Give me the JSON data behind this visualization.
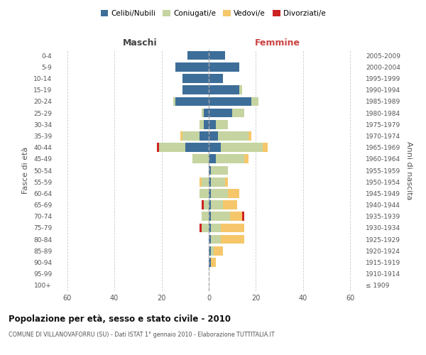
{
  "age_groups": [
    "100+",
    "95-99",
    "90-94",
    "85-89",
    "80-84",
    "75-79",
    "70-74",
    "65-69",
    "60-64",
    "55-59",
    "50-54",
    "45-49",
    "40-44",
    "35-39",
    "30-34",
    "25-29",
    "20-24",
    "15-19",
    "10-14",
    "5-9",
    "0-4"
  ],
  "birth_years": [
    "≤ 1909",
    "1910-1914",
    "1915-1919",
    "1920-1924",
    "1925-1929",
    "1930-1934",
    "1935-1939",
    "1940-1944",
    "1945-1949",
    "1950-1954",
    "1955-1959",
    "1960-1964",
    "1965-1969",
    "1970-1974",
    "1975-1979",
    "1980-1984",
    "1985-1989",
    "1990-1994",
    "1995-1999",
    "2000-2004",
    "2005-2009"
  ],
  "maschi": {
    "celibi": [
      0,
      0,
      0,
      0,
      0,
      0,
      0,
      0,
      0,
      0,
      0,
      0,
      10,
      4,
      2,
      2,
      14,
      11,
      11,
      14,
      9
    ],
    "coniugati": [
      0,
      0,
      0,
      0,
      0,
      3,
      3,
      2,
      4,
      3,
      0,
      7,
      11,
      7,
      2,
      1,
      1,
      0,
      0,
      0,
      0
    ],
    "vedovi": [
      0,
      0,
      0,
      0,
      0,
      0,
      0,
      0,
      0,
      1,
      0,
      0,
      0,
      1,
      0,
      0,
      0,
      0,
      0,
      0,
      0
    ],
    "divorziati": [
      0,
      0,
      0,
      0,
      0,
      1,
      0,
      1,
      0,
      0,
      0,
      0,
      1,
      0,
      0,
      0,
      0,
      0,
      0,
      0,
      0
    ]
  },
  "femmine": {
    "nubili": [
      0,
      0,
      1,
      1,
      1,
      1,
      1,
      1,
      1,
      1,
      1,
      3,
      5,
      4,
      3,
      10,
      18,
      13,
      6,
      13,
      7
    ],
    "coniugate": [
      0,
      0,
      0,
      1,
      4,
      4,
      8,
      5,
      7,
      6,
      7,
      12,
      18,
      13,
      5,
      5,
      3,
      1,
      0,
      0,
      0
    ],
    "vedove": [
      0,
      0,
      2,
      4,
      10,
      10,
      5,
      6,
      5,
      1,
      0,
      2,
      2,
      1,
      0,
      0,
      0,
      0,
      0,
      0,
      0
    ],
    "divorziate": [
      0,
      0,
      0,
      0,
      0,
      0,
      1,
      0,
      0,
      0,
      0,
      0,
      0,
      0,
      0,
      0,
      0,
      0,
      0,
      0,
      0
    ]
  },
  "colors": {
    "celibi": "#3d6e99",
    "coniugati": "#c5d4a0",
    "vedovi": "#f5c76a",
    "divorziati": "#cc2222"
  },
  "title": "Popolazione per età, sesso e stato civile - 2010",
  "subtitle": "COMUNE DI VILLANOVAFORRU (SU) - Dati ISTAT 1° gennaio 2010 - Elaborazione TUTTITALIA.IT",
  "xlabel_left": "Maschi",
  "xlabel_right": "Femmine",
  "ylabel_left": "Fasce di età",
  "ylabel_right": "Anni di nascita",
  "xlim": 65,
  "legend_labels": [
    "Celibi/Nubili",
    "Coniugati/e",
    "Vedovi/e",
    "Divorziati/e"
  ],
  "background_color": "#ffffff",
  "grid_color": "#cccccc"
}
